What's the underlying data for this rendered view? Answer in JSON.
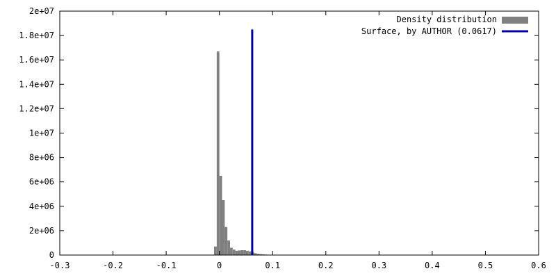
{
  "chart_data": {
    "type": "bar",
    "title": "",
    "xlabel": "",
    "ylabel": "",
    "xlim": [
      -0.3,
      0.6
    ],
    "ylim": [
      0,
      20000000
    ],
    "x_ticks": [
      -0.3,
      -0.2,
      -0.1,
      0,
      0.1,
      0.2,
      0.3,
      0.4,
      0.5,
      0.6
    ],
    "x_tick_labels": [
      "-0.3",
      "-0.2",
      "-0.1",
      "0",
      "0.1",
      "0.2",
      "0.3",
      "0.4",
      "0.5",
      "0.6"
    ],
    "y_ticks": [
      0,
      2000000,
      4000000,
      6000000,
      8000000,
      10000000,
      12000000,
      14000000,
      16000000,
      18000000,
      20000000
    ],
    "y_tick_labels": [
      "0",
      "2e+06",
      "4e+06",
      "6e+06",
      "8e+06",
      "1e+07",
      "1.2e+07",
      "1.4e+07",
      "1.6e+07",
      "1.8e+07",
      "2e+07"
    ],
    "grid": false,
    "legend_position": "top-right",
    "series": [
      {
        "name": "Density distribution",
        "kind": "histogram",
        "color": "#808080",
        "bin_width": 0.005,
        "bins": [
          {
            "x0": -0.01,
            "y": 700000
          },
          {
            "x0": -0.005,
            "y": 16700000
          },
          {
            "x0": 0.0,
            "y": 6500000
          },
          {
            "x0": 0.005,
            "y": 4500000
          },
          {
            "x0": 0.01,
            "y": 2300000
          },
          {
            "x0": 0.015,
            "y": 1200000
          },
          {
            "x0": 0.02,
            "y": 600000
          },
          {
            "x0": 0.025,
            "y": 450000
          },
          {
            "x0": 0.03,
            "y": 350000
          },
          {
            "x0": 0.035,
            "y": 380000
          },
          {
            "x0": 0.04,
            "y": 400000
          },
          {
            "x0": 0.045,
            "y": 400000
          },
          {
            "x0": 0.05,
            "y": 350000
          },
          {
            "x0": 0.055,
            "y": 300000
          },
          {
            "x0": 0.06,
            "y": 250000
          },
          {
            "x0": 0.065,
            "y": 150000
          },
          {
            "x0": 0.07,
            "y": 100000
          },
          {
            "x0": 0.075,
            "y": 80000
          },
          {
            "x0": 0.08,
            "y": 60000
          },
          {
            "x0": 0.085,
            "y": 40000
          }
        ]
      },
      {
        "name": "Surface, by AUTHOR (0.0617)",
        "kind": "vertical_line",
        "color": "#0000aa",
        "x": 0.0617,
        "y_top": 18500000
      }
    ]
  }
}
